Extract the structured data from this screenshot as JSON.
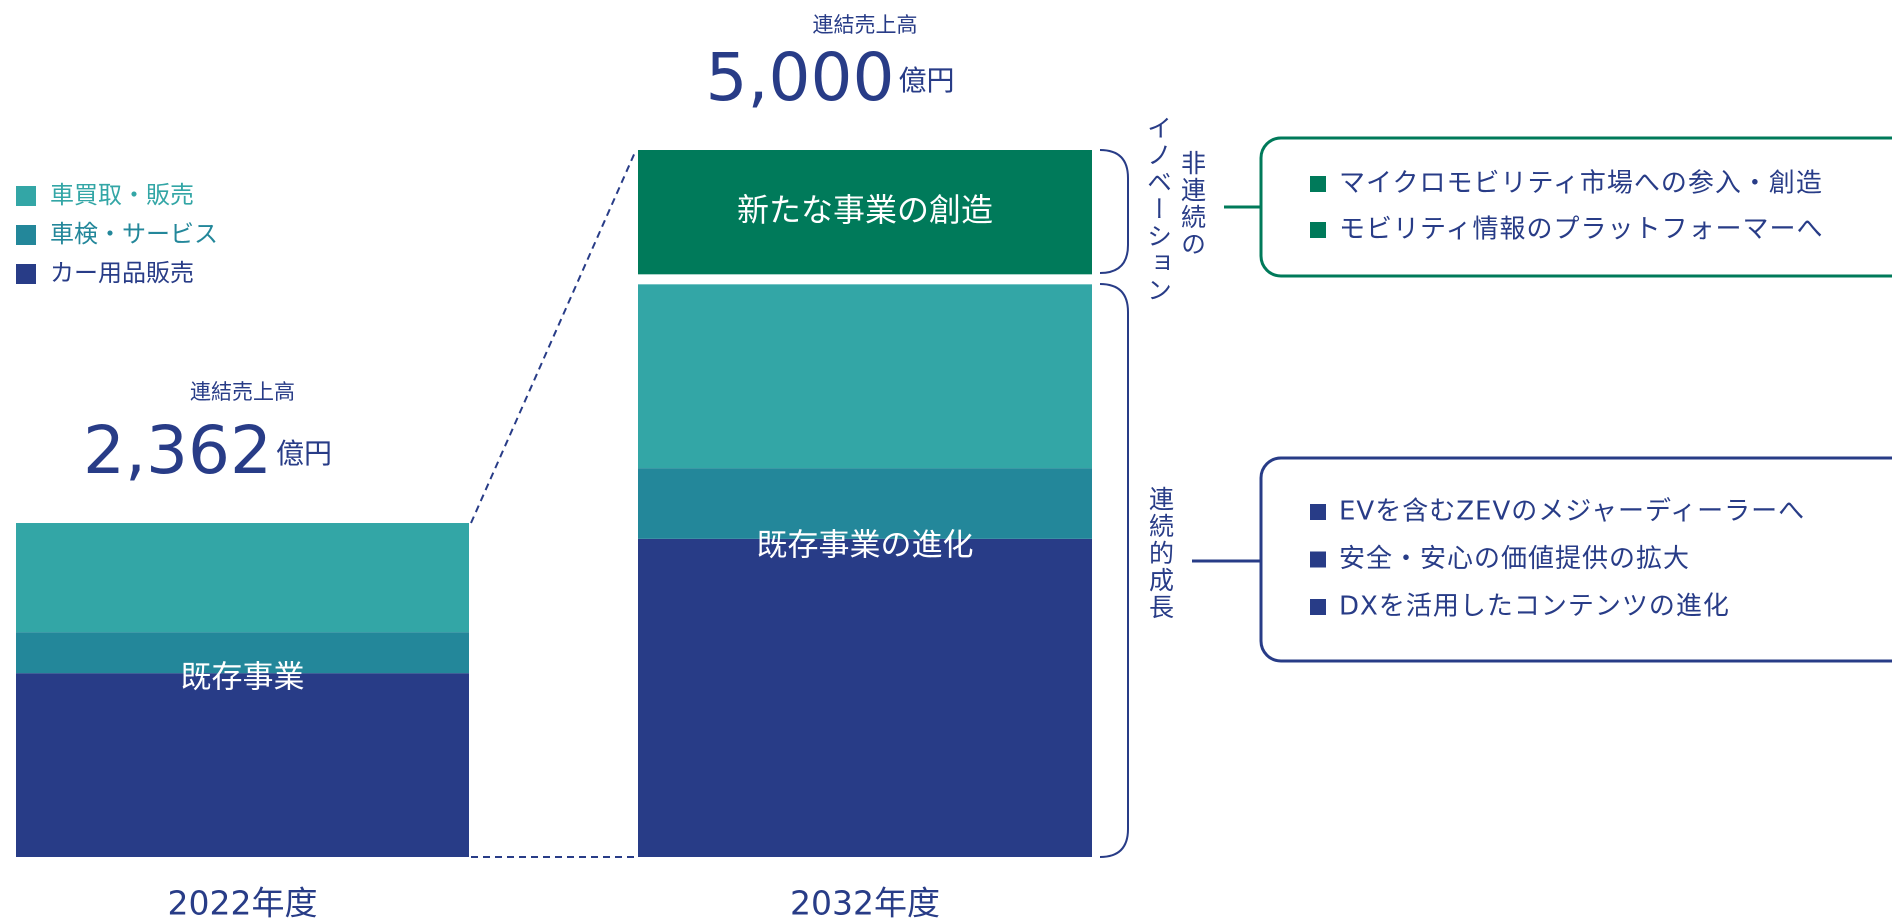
{
  "chart_data": {
    "type": "stacked_bar",
    "categories": [
      "2022年度",
      "2032年度"
    ],
    "series": [
      {
        "name": "カー用品販売",
        "color": "#283c87",
        "values": [
          1300,
          2250
        ]
      },
      {
        "name": "車検・サービス",
        "color": "#23879a",
        "values": [
          290,
          500
        ]
      },
      {
        "name": "車買取・販売",
        "color": "#33a6a6",
        "values": [
          772,
          1300
        ]
      }
    ],
    "new_business": {
      "label": "新たな事業の創造",
      "color": "#007a5a",
      "values": [
        null,
        950
      ]
    },
    "bar_labels": [
      "既存事業",
      "既存事業の進化"
    ],
    "total_caption": "連結売上高",
    "totals": [
      {
        "value": 2362,
        "label": "2,362"
      },
      {
        "value": 5000,
        "label": "5,000"
      }
    ],
    "unit": "億円",
    "brackets": [
      {
        "lines": [
          "非連続の",
          "イノベーション"
        ],
        "color": "#007a5a",
        "items": [
          "マイクロモビリティ市場への参入・創造",
          "モビリティ情報のプラットフォーマーへ"
        ]
      },
      {
        "lines": [
          "連続的成長"
        ],
        "color": "#283c87",
        "items": [
          "EVを含むZEVのメジャーディーラーへ",
          "安全・安心の価値提供の拡大",
          "DXを活用したコンテンツの進化"
        ]
      }
    ]
  }
}
